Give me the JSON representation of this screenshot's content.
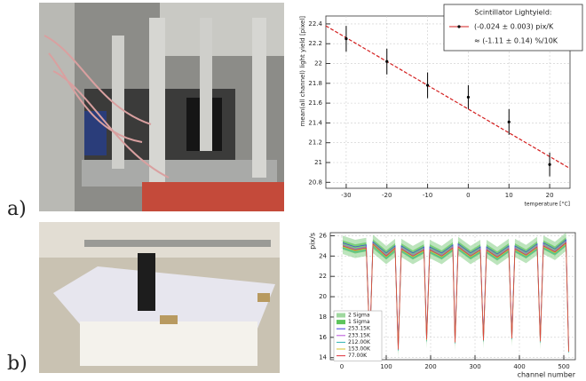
{
  "figure": {
    "labels": [
      "a)",
      "b)"
    ]
  },
  "chart_data": [
    {
      "type": "scatter",
      "xlabel": "temperature [°C]",
      "ylabel": "mean(all channel) light yield [pixel]",
      "xlim": [
        -35,
        25
      ],
      "ylim": [
        20.74,
        22.48
      ],
      "xticks": [
        -30,
        -20,
        -10,
        0,
        10,
        20
      ],
      "yticks": [
        20.8,
        21,
        21.2,
        21.4,
        21.6,
        21.8,
        22,
        22.2,
        22.4
      ],
      "grid": true,
      "legend_title": "Scintillator Lightyield:",
      "series": [
        {
          "name": "(-0.024 ± 0.003) pix/K",
          "color": "#000000",
          "x": [
            -30,
            -20,
            -10,
            0,
            10,
            20
          ],
          "values": [
            22.25,
            22.02,
            21.78,
            21.66,
            21.41,
            20.98
          ],
          "errors": [
            0.13,
            0.13,
            0.13,
            0.12,
            0.13,
            0.12
          ]
        }
      ],
      "fit": {
        "name": "≈ (-1.11 ± 0.14) %/10K",
        "color": "#d42020",
        "x": [
          -35,
          25
        ],
        "values": [
          22.38,
          20.94
        ]
      }
    },
    {
      "type": "line",
      "xlabel": "channel number",
      "ylabel": "pix/s",
      "xlim": [
        -26,
        526
      ],
      "ylim": [
        13.8,
        26.3
      ],
      "xticks": [
        0,
        100,
        200,
        300,
        400,
        500
      ],
      "yticks": [
        14,
        16,
        18,
        20,
        22,
        24,
        26
      ],
      "grid": true,
      "x": [
        2,
        30,
        55,
        63,
        70,
        100,
        120,
        127,
        134,
        160,
        185,
        191,
        198,
        225,
        250,
        255,
        262,
        290,
        312,
        319,
        326,
        350,
        376,
        383,
        390,
        415,
        440,
        447,
        454,
        480,
        505,
        511
      ],
      "bands": [
        {
          "name": "2 Sigma",
          "color": "#9fd89f",
          "band": 0.9,
          "values": [
            25.1,
            24.7,
            24.9,
            15.4,
            25.2,
            24.1,
            24.8,
            14.9,
            24.8,
            24.1,
            24.7,
            15.8,
            24.7,
            24.1,
            24.9,
            15.6,
            25.0,
            24.1,
            24.7,
            15.8,
            24.7,
            24.0,
            24.8,
            16.0,
            24.8,
            24.2,
            25.0,
            15.7,
            25.1,
            24.5,
            25.4,
            14.7
          ]
        },
        {
          "name": "1 Sigma",
          "color": "#5cc45c",
          "band": 0.45,
          "values": [
            25.1,
            24.7,
            24.9,
            15.4,
            25.2,
            24.1,
            24.8,
            14.9,
            24.8,
            24.1,
            24.7,
            15.8,
            24.7,
            24.1,
            24.9,
            15.6,
            25.0,
            24.1,
            24.7,
            15.8,
            24.7,
            24.0,
            24.8,
            16.0,
            24.8,
            24.2,
            25.0,
            15.7,
            25.1,
            24.5,
            25.4,
            14.7
          ]
        }
      ],
      "series": [
        {
          "name": "253.15K",
          "color": "#3a3adf",
          "values": [
            25.3,
            24.9,
            25.1,
            15.6,
            25.4,
            24.3,
            25.0,
            15.1,
            25.0,
            24.3,
            24.9,
            16.0,
            24.9,
            24.3,
            25.1,
            15.8,
            25.2,
            24.3,
            24.9,
            16.0,
            24.9,
            24.2,
            25.0,
            16.2,
            25.0,
            24.4,
            25.2,
            15.9,
            25.3,
            24.7,
            25.6,
            14.9
          ]
        },
        {
          "name": "233.15K",
          "color": "#b84fd8",
          "values": [
            25.1,
            24.7,
            24.9,
            15.4,
            25.2,
            24.1,
            24.8,
            14.9,
            24.8,
            24.1,
            24.7,
            15.8,
            24.7,
            24.1,
            24.9,
            15.6,
            25.0,
            24.1,
            24.7,
            15.8,
            24.7,
            24.0,
            24.8,
            16.0,
            24.8,
            24.2,
            25.0,
            15.7,
            25.1,
            24.5,
            25.4,
            14.7
          ]
        },
        {
          "name": "212.00K",
          "color": "#2fb3b3",
          "values": [
            24.8,
            24.4,
            24.6,
            15.2,
            25.0,
            23.8,
            24.6,
            14.7,
            24.5,
            23.8,
            24.4,
            15.6,
            24.4,
            23.8,
            24.6,
            15.4,
            24.7,
            23.8,
            24.4,
            15.6,
            24.4,
            23.7,
            24.5,
            15.8,
            24.5,
            23.9,
            24.7,
            15.5,
            24.8,
            24.2,
            25.1,
            14.5
          ]
        },
        {
          "name": "153.00K",
          "color": "#d6c62a",
          "values": [
            24.9,
            24.5,
            24.7,
            15.4,
            25.1,
            23.9,
            24.7,
            14.9,
            24.6,
            23.9,
            24.5,
            15.7,
            24.5,
            23.9,
            24.7,
            15.5,
            24.8,
            23.9,
            24.5,
            15.7,
            24.5,
            23.8,
            24.6,
            15.9,
            24.6,
            24.0,
            24.8,
            15.6,
            24.9,
            24.3,
            25.2,
            14.6
          ]
        },
        {
          "name": "77.00K",
          "color": "#e0303a",
          "values": [
            25.0,
            24.6,
            24.8,
            15.3,
            25.2,
            24.0,
            24.8,
            14.8,
            24.7,
            24.0,
            24.6,
            15.8,
            24.6,
            24.0,
            24.8,
            15.5,
            24.9,
            24.0,
            24.6,
            15.7,
            24.6,
            23.9,
            24.7,
            15.9,
            24.7,
            24.1,
            24.9,
            15.6,
            25.0,
            24.4,
            25.3,
            14.6
          ]
        }
      ]
    }
  ]
}
